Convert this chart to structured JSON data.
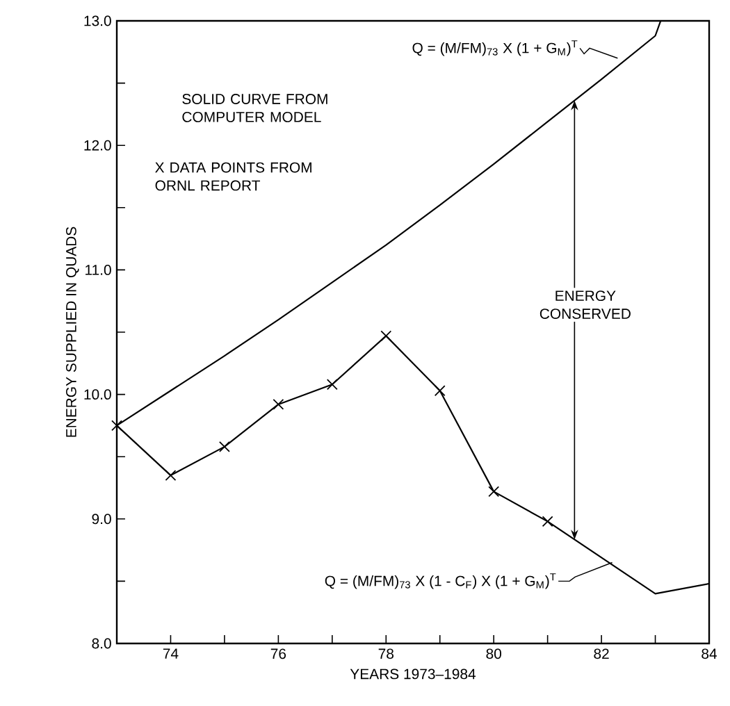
{
  "chart_data": {
    "type": "line",
    "xlabel": "YEARS 1973–1984",
    "ylabel": "ENERGY SUPPLIED IN QUADS",
    "xlim": [
      73,
      84
    ],
    "ylim": [
      8.0,
      13.0
    ],
    "xticks": [
      {
        "value": 74,
        "label": "74"
      },
      {
        "value": 75,
        "label": null
      },
      {
        "value": 76,
        "label": "76"
      },
      {
        "value": 77,
        "label": null
      },
      {
        "value": 78,
        "label": "78"
      },
      {
        "value": 79,
        "label": null
      },
      {
        "value": 80,
        "label": "80"
      },
      {
        "value": 81,
        "label": null
      },
      {
        "value": 82,
        "label": "82"
      },
      {
        "value": 83,
        "label": null
      },
      {
        "value": 84,
        "label": "84"
      }
    ],
    "yticks": [
      {
        "value": 8.0,
        "label": "8.0"
      },
      {
        "value": 8.5,
        "label": null
      },
      {
        "value": 9.0,
        "label": "9.0"
      },
      {
        "value": 9.5,
        "label": null
      },
      {
        "value": 10.0,
        "label": "10.0"
      },
      {
        "value": 10.5,
        "label": null
      },
      {
        "value": 11.0,
        "label": "11.0"
      },
      {
        "value": 11.5,
        "label": null
      },
      {
        "value": 12.0,
        "label": "12.0"
      },
      {
        "value": 12.5,
        "label": null
      },
      {
        "value": 13.0,
        "label": "13.0"
      }
    ],
    "series": [
      {
        "color": "#000000",
        "marker": "none",
        "x": [
          73,
          74,
          75,
          76,
          77,
          78,
          79,
          80,
          81,
          82,
          83,
          83.1
        ],
        "values": [
          9.75,
          10.03,
          10.31,
          10.6,
          10.9,
          11.2,
          11.52,
          11.85,
          12.19,
          12.53,
          12.88,
          13.0
        ]
      },
      {
        "color": "#000000",
        "marker": "cross",
        "x": [
          73,
          74,
          75,
          76,
          77,
          78,
          79,
          80,
          81
        ],
        "values": [
          9.75,
          9.35,
          9.58,
          9.92,
          10.08,
          10.47,
          10.03,
          9.22,
          8.98
        ]
      },
      {
        "color": "#000000",
        "marker": "none",
        "x": [
          81,
          83,
          84
        ],
        "values": [
          8.98,
          8.4,
          8.48
        ]
      }
    ],
    "annotations": [
      {
        "text": "Q = (M/FM)$_{73}$ X (1 + G$_{M}$)$^{T}$",
        "x": 82.3,
        "y": 12.7
      },
      "SOLID CURVE FROM COMPUTER MODEL",
      "X DATA POINTS FROM ORNL REPORT",
      "ENERGY CONSERVED",
      {
        "text": "Q = (M/FM)$_{73}$ X (1 - C$_{F}$) X  (1 + G$_{M}$)$^{T}$",
        "x": 82.2,
        "y": 8.65
      }
    ]
  }
}
